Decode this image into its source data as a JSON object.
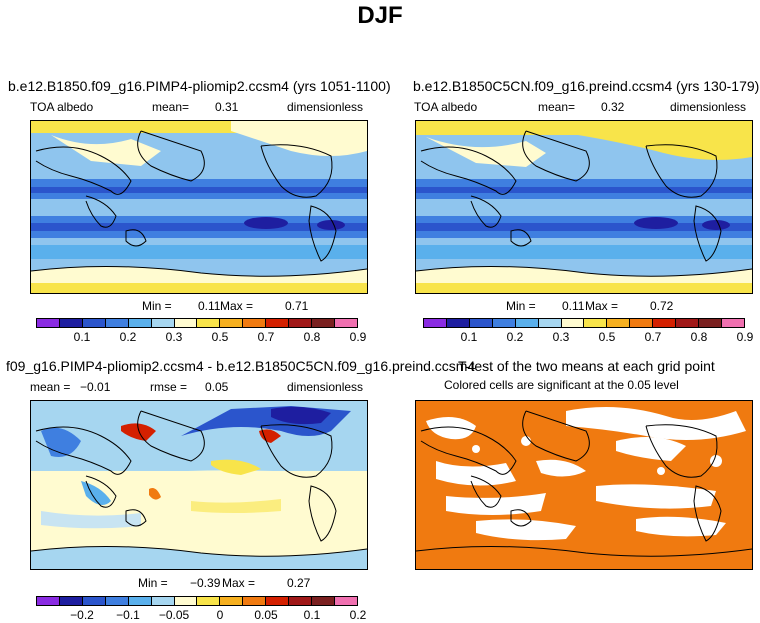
{
  "figure_title": "DJF",
  "panels": [
    {
      "title": "b.e12.B1850.f09_g16.PIMP4-pliomip2.ccsm4 (yrs 1051-1100)",
      "var": "TOA albedo",
      "mean_label": "mean=",
      "mean_value": "0.31",
      "units": "dimensionless",
      "min_label": "Min =",
      "min_value": "0.11",
      "max_label": "Max =",
      "max_value": "0.71"
    },
    {
      "title": "b.e12.B1850C5CN.f09_g16.preind.ccsm4 (yrs 130-179)",
      "var": "TOA albedo",
      "mean_label": "mean=",
      "mean_value": "0.32",
      "units": "dimensionless",
      "min_label": "Min =",
      "min_value": "0.11",
      "max_label": "Max =",
      "max_value": "0.72"
    },
    {
      "title": "f09_g16.PIMP4-pliomip2.ccsm4 - b.e12.B1850C5CN.f09_g16.preind.ccsm4",
      "mean_label": "mean =",
      "mean_value": "−0.01",
      "rmse_label": "rmse =",
      "rmse_value": "0.05",
      "units": "dimensionless",
      "min_label": "Min =",
      "min_value": "−0.39",
      "max_label": "Max =",
      "max_value": "0.27"
    },
    {
      "title": "T-test of the two means at each grid point",
      "subtitle": "Colored cells are significant at the 0.05 level"
    }
  ],
  "colorbar_abs": {
    "colors": [
      "#8a2be2",
      "#1e1ea0",
      "#2b55cc",
      "#3f7fe0",
      "#5ab0ec",
      "#a6d6f0",
      "#fffbd0",
      "#f8e44a",
      "#f6b020",
      "#f07a10",
      "#d42000",
      "#a01818",
      "#7a2020",
      "#f070b0"
    ],
    "labels": [
      "0.1",
      "0.2",
      "0.3",
      "0.5",
      "0.7",
      "0.8",
      "0.9"
    ]
  },
  "colorbar_diff": {
    "colors": [
      "#8a2be2",
      "#1e1ea0",
      "#2b55cc",
      "#3f7fe0",
      "#5ab0ec",
      "#a6d6f0",
      "#fffbd0",
      "#f8e44a",
      "#f6b020",
      "#f07a10",
      "#d42000",
      "#a01818",
      "#7a2020",
      "#f070b0"
    ],
    "labels": [
      "−0.2",
      "−0.1",
      "−0.05",
      "0",
      "0.05",
      "0.1",
      "0.2"
    ]
  },
  "significance_color": "#f07a10"
}
